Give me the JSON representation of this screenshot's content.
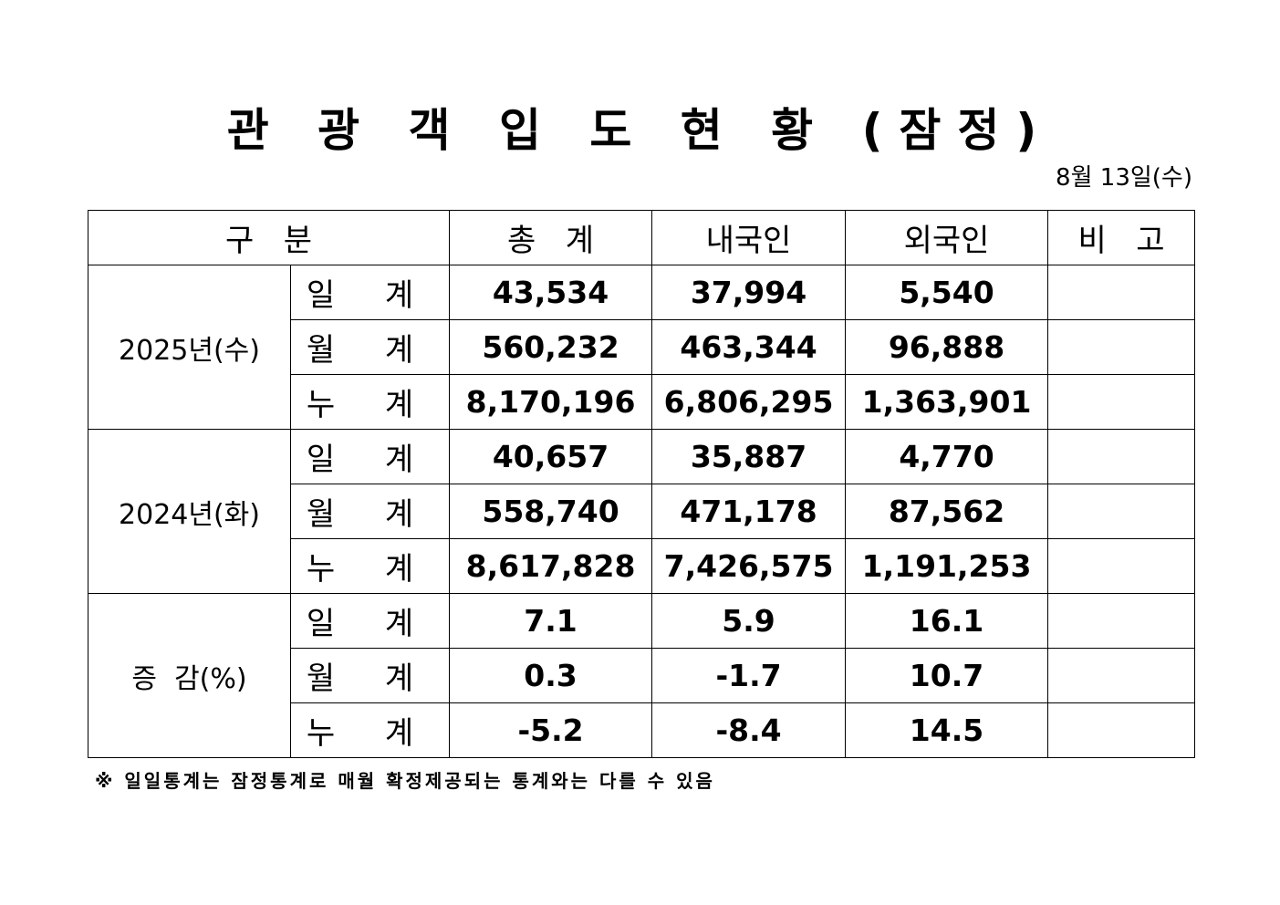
{
  "title": "관 광 객 입 도 현 황 (잠정)",
  "date": "8월  13일(수)",
  "table": {
    "headers": [
      "구   분",
      "총   계",
      "내국인",
      "외국인",
      "비   고"
    ],
    "groups": [
      {
        "label": "2025년(수)",
        "rows": [
          {
            "sub": "일 계",
            "total": "43,534",
            "domestic": "37,994",
            "foreign": "5,540",
            "note": ""
          },
          {
            "sub": "월 계",
            "total": "560,232",
            "domestic": "463,344",
            "foreign": "96,888",
            "note": ""
          },
          {
            "sub": "누 계",
            "total": "8,170,196",
            "domestic": "6,806,295",
            "foreign": "1,363,901",
            "note": ""
          }
        ]
      },
      {
        "label": "2024년(화)",
        "rows": [
          {
            "sub": "일 계",
            "total": "40,657",
            "domestic": "35,887",
            "foreign": "4,770",
            "note": ""
          },
          {
            "sub": "월 계",
            "total": "558,740",
            "domestic": "471,178",
            "foreign": "87,562",
            "note": ""
          },
          {
            "sub": "누 계",
            "total": "8,617,828",
            "domestic": "7,426,575",
            "foreign": "1,191,253",
            "note": ""
          }
        ]
      },
      {
        "label": "증  감(%)",
        "rows": [
          {
            "sub": "일 계",
            "total": "7.1",
            "domestic": "5.9",
            "foreign": "16.1",
            "note": ""
          },
          {
            "sub": "월 계",
            "total": "0.3",
            "domestic": "-1.7",
            "foreign": "10.7",
            "note": ""
          },
          {
            "sub": "누 계",
            "total": "-5.2",
            "domestic": "-8.4",
            "foreign": "14.5",
            "note": ""
          }
        ]
      }
    ]
  },
  "footnote": "※ 일일통계는 잠정통계로 매월 확정제공되는 통계와는 다를 수 있음"
}
